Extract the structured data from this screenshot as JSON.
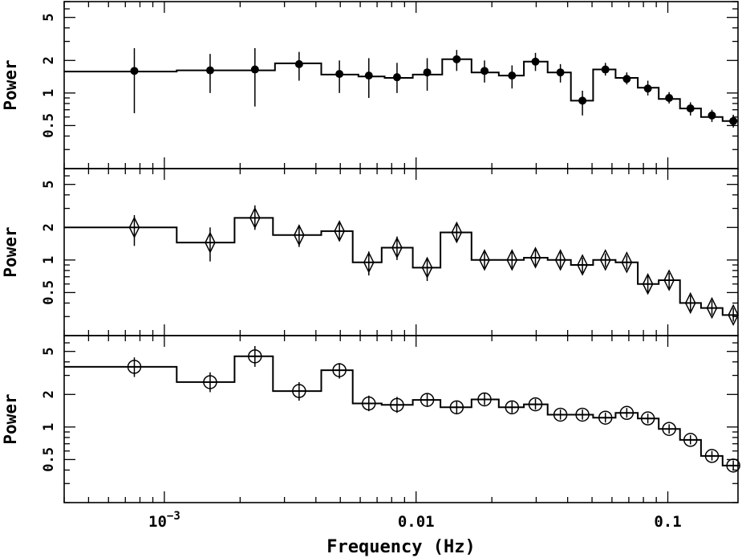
{
  "chart_data": {
    "type": "scatter",
    "layout": "three vertically stacked panels sharing the x axis",
    "xlabel": "Frequency (Hz)",
    "xscale": "log",
    "xlim": [
      0.0004,
      0.19
    ],
    "x_tick_labels": [
      {
        "value": 0.001,
        "base": "10",
        "exp": "−3"
      },
      {
        "value": 0.01,
        "base": "0.01",
        "exp": ""
      },
      {
        "value": 0.1,
        "base": "0.1",
        "exp": ""
      }
    ],
    "ylabel": "Power",
    "yscale": "log",
    "ylim": [
      0.2,
      7
    ],
    "y_tick_labels": [
      {
        "value": 0.5,
        "label": "0.5"
      },
      {
        "value": 1,
        "label": "1"
      },
      {
        "value": 2,
        "label": "2"
      },
      {
        "value": 5,
        "label": "5"
      }
    ],
    "panels": [
      {
        "marker": "filled-circle",
        "points": [
          {
            "f": 0.00076,
            "y": 1.6,
            "lo": 0.65,
            "hi": 2.6
          },
          {
            "f": 0.00152,
            "y": 1.62,
            "lo": 1.0,
            "hi": 2.3
          },
          {
            "f": 0.00229,
            "y": 1.65,
            "lo": 0.75,
            "hi": 2.6
          },
          {
            "f": 0.00343,
            "y": 1.85,
            "lo": 1.3,
            "hi": 2.4
          },
          {
            "f": 0.00496,
            "y": 1.5,
            "lo": 1.0,
            "hi": 2.0
          },
          {
            "f": 0.00649,
            "y": 1.45,
            "lo": 0.9,
            "hi": 2.1
          },
          {
            "f": 0.0084,
            "y": 1.4,
            "lo": 1.0,
            "hi": 1.9
          },
          {
            "f": 0.01107,
            "y": 1.55,
            "lo": 1.05,
            "hi": 2.1
          },
          {
            "f": 0.0145,
            "y": 2.05,
            "lo": 1.6,
            "hi": 2.5
          },
          {
            "f": 0.0187,
            "y": 1.6,
            "lo": 1.25,
            "hi": 2.0
          },
          {
            "f": 0.02405,
            "y": 1.45,
            "lo": 1.1,
            "hi": 1.8
          },
          {
            "f": 0.0298,
            "y": 1.95,
            "lo": 1.6,
            "hi": 2.35
          },
          {
            "f": 0.03744,
            "y": 1.55,
            "lo": 1.25,
            "hi": 1.85
          },
          {
            "f": 0.0458,
            "y": 0.85,
            "lo": 0.62,
            "hi": 1.05
          },
          {
            "f": 0.0565,
            "y": 1.65,
            "lo": 1.45,
            "hi": 1.9
          },
          {
            "f": 0.0687,
            "y": 1.35,
            "lo": 1.2,
            "hi": 1.55
          },
          {
            "f": 0.0833,
            "y": 1.1,
            "lo": 0.95,
            "hi": 1.3
          },
          {
            "f": 0.1012,
            "y": 0.9,
            "lo": 0.8,
            "hi": 1.02
          },
          {
            "f": 0.123,
            "y": 0.72,
            "lo": 0.62,
            "hi": 0.82
          },
          {
            "f": 0.1497,
            "y": 0.62,
            "lo": 0.54,
            "hi": 0.7
          },
          {
            "f": 0.182,
            "y": 0.55,
            "lo": 0.48,
            "hi": 0.63
          }
        ],
        "model_step": [
          {
            "f0": 0.0004,
            "f1": 0.00112,
            "y": 1.58
          },
          {
            "f0": 0.00112,
            "f1": 0.00275,
            "y": 1.62
          },
          {
            "f0": 0.00275,
            "f1": 0.0042,
            "y": 1.88
          },
          {
            "f0": 0.0042,
            "f1": 0.0059,
            "y": 1.48
          },
          {
            "f0": 0.0059,
            "f1": 0.0075,
            "y": 1.42
          },
          {
            "f0": 0.0075,
            "f1": 0.0097,
            "y": 1.38
          },
          {
            "f0": 0.0097,
            "f1": 0.0127,
            "y": 1.48
          },
          {
            "f0": 0.0127,
            "f1": 0.0166,
            "y": 2.05
          },
          {
            "f0": 0.0166,
            "f1": 0.0213,
            "y": 1.55
          },
          {
            "f0": 0.0213,
            "f1": 0.0268,
            "y": 1.45
          },
          {
            "f0": 0.0268,
            "f1": 0.0333,
            "y": 1.95
          },
          {
            "f0": 0.0333,
            "f1": 0.0412,
            "y": 1.55
          },
          {
            "f0": 0.0412,
            "f1": 0.0505,
            "y": 0.85
          },
          {
            "f0": 0.0505,
            "f1": 0.062,
            "y": 1.65
          },
          {
            "f0": 0.062,
            "f1": 0.076,
            "y": 1.38
          },
          {
            "f0": 0.076,
            "f1": 0.092,
            "y": 1.12
          },
          {
            "f0": 0.092,
            "f1": 0.1118,
            "y": 0.88
          },
          {
            "f0": 0.1118,
            "f1": 0.1355,
            "y": 0.72
          },
          {
            "f0": 0.1355,
            "f1": 0.165,
            "y": 0.6
          },
          {
            "f0": 0.165,
            "f1": 0.19,
            "y": 0.55
          }
        ]
      },
      {
        "marker": "diamond",
        "points": [
          {
            "f": 0.00076,
            "y": 2.0,
            "lo": 1.35,
            "hi": 2.6
          },
          {
            "f": 0.00152,
            "y": 1.45,
            "lo": 0.97,
            "hi": 2.0
          },
          {
            "f": 0.00229,
            "y": 2.45,
            "lo": 1.9,
            "hi": 3.2
          },
          {
            "f": 0.00343,
            "y": 1.7,
            "lo": 1.32,
            "hi": 2.1
          },
          {
            "f": 0.00496,
            "y": 1.85,
            "lo": 1.5,
            "hi": 2.25
          },
          {
            "f": 0.00649,
            "y": 0.95,
            "lo": 0.72,
            "hi": 1.2
          },
          {
            "f": 0.0084,
            "y": 1.3,
            "lo": 1.0,
            "hi": 1.65
          },
          {
            "f": 0.01107,
            "y": 0.85,
            "lo": 0.64,
            "hi": 1.05
          },
          {
            "f": 0.0145,
            "y": 1.8,
            "lo": 1.45,
            "hi": 2.2
          },
          {
            "f": 0.0187,
            "y": 1.0,
            "lo": 0.82,
            "hi": 1.2
          },
          {
            "f": 0.02405,
            "y": 1.0,
            "lo": 0.85,
            "hi": 1.2
          },
          {
            "f": 0.0298,
            "y": 1.05,
            "lo": 0.88,
            "hi": 1.25
          },
          {
            "f": 0.03744,
            "y": 1.0,
            "lo": 0.85,
            "hi": 1.18
          },
          {
            "f": 0.0458,
            "y": 0.9,
            "lo": 0.76,
            "hi": 1.05
          },
          {
            "f": 0.0565,
            "y": 1.0,
            "lo": 0.86,
            "hi": 1.15
          },
          {
            "f": 0.0687,
            "y": 0.95,
            "lo": 0.82,
            "hi": 1.1
          },
          {
            "f": 0.0833,
            "y": 0.6,
            "lo": 0.5,
            "hi": 0.72
          },
          {
            "f": 0.1012,
            "y": 0.65,
            "lo": 0.55,
            "hi": 0.76
          },
          {
            "f": 0.123,
            "y": 0.4,
            "lo": 0.34,
            "hi": 0.47
          },
          {
            "f": 0.1497,
            "y": 0.36,
            "lo": 0.31,
            "hi": 0.42
          },
          {
            "f": 0.182,
            "y": 0.31,
            "lo": 0.27,
            "hi": 0.36
          }
        ],
        "model_step": [
          {
            "f0": 0.0004,
            "f1": 0.00112,
            "y": 2.0
          },
          {
            "f0": 0.00112,
            "f1": 0.0019,
            "y": 1.45
          },
          {
            "f0": 0.0019,
            "f1": 0.0027,
            "y": 2.45
          },
          {
            "f0": 0.0027,
            "f1": 0.0042,
            "y": 1.7
          },
          {
            "f0": 0.0042,
            "f1": 0.0056,
            "y": 1.85
          },
          {
            "f0": 0.0056,
            "f1": 0.0073,
            "y": 0.95
          },
          {
            "f0": 0.0073,
            "f1": 0.0097,
            "y": 1.3
          },
          {
            "f0": 0.0097,
            "f1": 0.0125,
            "y": 0.85
          },
          {
            "f0": 0.0125,
            "f1": 0.0166,
            "y": 1.8
          },
          {
            "f0": 0.0166,
            "f1": 0.0213,
            "y": 1.0
          },
          {
            "f0": 0.0213,
            "f1": 0.0268,
            "y": 1.0
          },
          {
            "f0": 0.0268,
            "f1": 0.0333,
            "y": 1.05
          },
          {
            "f0": 0.0333,
            "f1": 0.0412,
            "y": 1.0
          },
          {
            "f0": 0.0412,
            "f1": 0.0505,
            "y": 0.9
          },
          {
            "f0": 0.0505,
            "f1": 0.062,
            "y": 1.0
          },
          {
            "f0": 0.062,
            "f1": 0.076,
            "y": 0.95
          },
          {
            "f0": 0.076,
            "f1": 0.092,
            "y": 0.6
          },
          {
            "f0": 0.092,
            "f1": 0.1118,
            "y": 0.65
          },
          {
            "f0": 0.1118,
            "f1": 0.1355,
            "y": 0.4
          },
          {
            "f0": 0.1355,
            "f1": 0.165,
            "y": 0.36
          },
          {
            "f0": 0.165,
            "f1": 0.19,
            "y": 0.31
          }
        ]
      },
      {
        "marker": "open-circle-cross",
        "points": [
          {
            "f": 0.00076,
            "y": 3.6,
            "lo": 2.9,
            "hi": 4.4
          },
          {
            "f": 0.00152,
            "y": 2.6,
            "lo": 2.1,
            "hi": 3.2
          },
          {
            "f": 0.00229,
            "y": 4.5,
            "lo": 3.6,
            "hi": 5.6
          },
          {
            "f": 0.00343,
            "y": 2.15,
            "lo": 1.75,
            "hi": 2.6
          },
          {
            "f": 0.00496,
            "y": 3.35,
            "lo": 2.8,
            "hi": 3.9
          },
          {
            "f": 0.00649,
            "y": 1.65,
            "lo": 1.4,
            "hi": 1.95
          },
          {
            "f": 0.0084,
            "y": 1.6,
            "lo": 1.35,
            "hi": 1.9
          },
          {
            "f": 0.01107,
            "y": 1.78,
            "lo": 1.55,
            "hi": 2.05
          },
          {
            "f": 0.0145,
            "y": 1.52,
            "lo": 1.32,
            "hi": 1.75
          },
          {
            "f": 0.0187,
            "y": 1.8,
            "lo": 1.6,
            "hi": 2.05
          },
          {
            "f": 0.02405,
            "y": 1.52,
            "lo": 1.35,
            "hi": 1.72
          },
          {
            "f": 0.0298,
            "y": 1.62,
            "lo": 1.45,
            "hi": 1.82
          },
          {
            "f": 0.03744,
            "y": 1.3,
            "lo": 1.17,
            "hi": 1.45
          },
          {
            "f": 0.0458,
            "y": 1.3,
            "lo": 1.17,
            "hi": 1.45
          },
          {
            "f": 0.0565,
            "y": 1.22,
            "lo": 1.1,
            "hi": 1.36
          },
          {
            "f": 0.0687,
            "y": 1.35,
            "lo": 1.22,
            "hi": 1.5
          },
          {
            "f": 0.0833,
            "y": 1.2,
            "lo": 1.08,
            "hi": 1.33
          },
          {
            "f": 0.1012,
            "y": 0.96,
            "lo": 0.87,
            "hi": 1.06
          },
          {
            "f": 0.123,
            "y": 0.76,
            "lo": 0.69,
            "hi": 0.84
          },
          {
            "f": 0.1497,
            "y": 0.54,
            "lo": 0.49,
            "hi": 0.6
          },
          {
            "f": 0.182,
            "y": 0.44,
            "lo": 0.4,
            "hi": 0.49
          }
        ],
        "model_step": [
          {
            "f0": 0.0004,
            "f1": 0.00112,
            "y": 3.6
          },
          {
            "f0": 0.00112,
            "f1": 0.0019,
            "y": 2.6
          },
          {
            "f0": 0.0019,
            "f1": 0.0027,
            "y": 4.5
          },
          {
            "f0": 0.0027,
            "f1": 0.0042,
            "y": 2.15
          },
          {
            "f0": 0.0042,
            "f1": 0.0056,
            "y": 3.35
          },
          {
            "f0": 0.0056,
            "f1": 0.0073,
            "y": 1.65
          },
          {
            "f0": 0.0073,
            "f1": 0.0097,
            "y": 1.6
          },
          {
            "f0": 0.0097,
            "f1": 0.0125,
            "y": 1.78
          },
          {
            "f0": 0.0125,
            "f1": 0.0166,
            "y": 1.52
          },
          {
            "f0": 0.0166,
            "f1": 0.0213,
            "y": 1.8
          },
          {
            "f0": 0.0213,
            "f1": 0.0268,
            "y": 1.52
          },
          {
            "f0": 0.0268,
            "f1": 0.0333,
            "y": 1.62
          },
          {
            "f0": 0.0333,
            "f1": 0.0412,
            "y": 1.3
          },
          {
            "f0": 0.0412,
            "f1": 0.0505,
            "y": 1.3
          },
          {
            "f0": 0.0505,
            "f1": 0.062,
            "y": 1.22
          },
          {
            "f0": 0.062,
            "f1": 0.076,
            "y": 1.35
          },
          {
            "f0": 0.076,
            "f1": 0.092,
            "y": 1.2
          },
          {
            "f0": 0.092,
            "f1": 0.1118,
            "y": 0.96
          },
          {
            "f0": 0.1118,
            "f1": 0.1355,
            "y": 0.76
          },
          {
            "f0": 0.1355,
            "f1": 0.165,
            "y": 0.54
          },
          {
            "f0": 0.165,
            "f1": 0.19,
            "y": 0.44
          }
        ]
      }
    ]
  }
}
